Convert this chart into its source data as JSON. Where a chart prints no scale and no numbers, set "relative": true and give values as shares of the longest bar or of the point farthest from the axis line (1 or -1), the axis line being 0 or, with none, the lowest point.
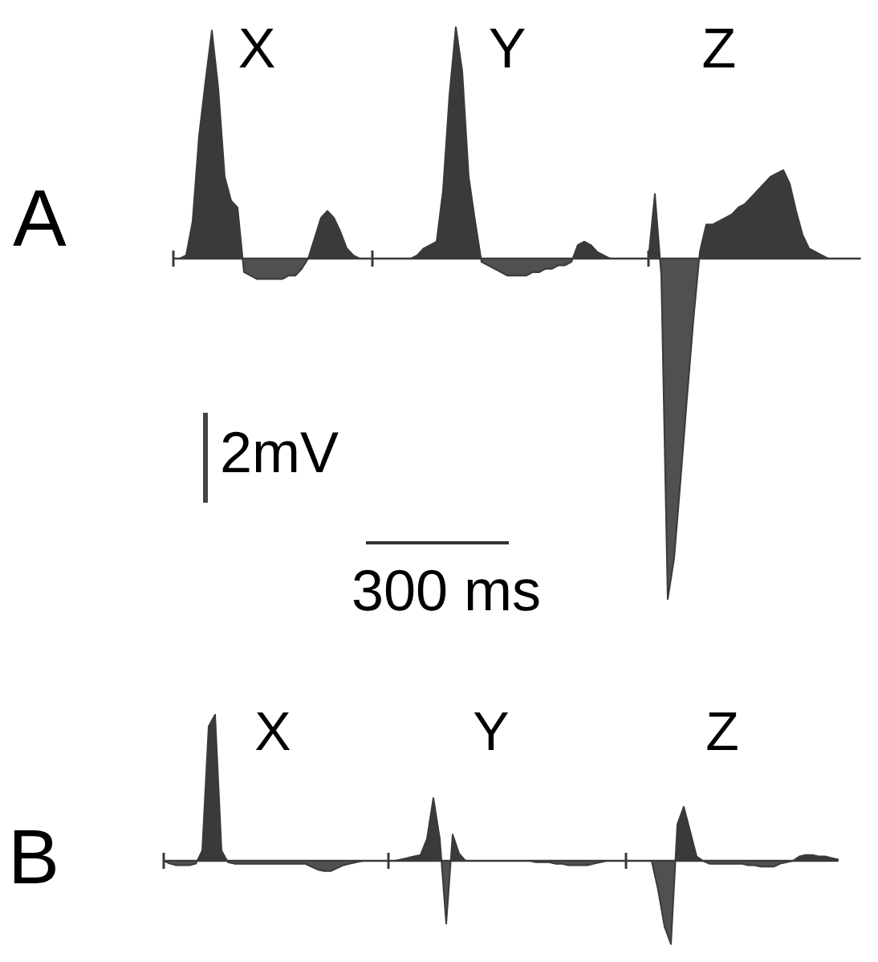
{
  "chart_data": [
    {
      "type": "area",
      "title": "A",
      "relative": true,
      "categories": [
        null,
        null,
        null,
        null,
        null,
        null,
        null,
        null,
        null,
        null,
        null,
        null,
        null,
        null,
        null,
        null,
        null,
        null,
        null,
        null,
        null,
        null,
        null,
        null,
        null,
        null,
        null,
        null,
        null,
        null,
        null,
        null,
        null,
        null,
        null,
        null,
        null,
        null,
        null,
        null,
        null,
        null,
        null,
        null,
        null,
        null,
        null,
        null,
        null,
        null,
        null,
        null,
        null,
        null,
        null,
        null,
        null,
        null,
        null,
        null,
        null,
        null,
        null,
        null,
        null,
        null,
        null,
        null,
        null,
        null,
        null,
        null,
        null,
        null,
        null,
        null,
        null,
        null,
        null,
        null,
        null,
        null,
        null,
        null,
        null,
        null,
        null,
        null,
        null,
        null,
        null,
        null,
        null,
        null,
        null,
        null,
        null,
        null,
        null,
        null,
        null,
        null,
        null,
        null,
        null,
        null,
        null,
        null
      ],
      "series": [
        {
          "name": "X",
          "color": "#3a3a3a",
          "values": [
            0,
            0,
            0.01,
            0.11,
            0.36,
            0.52,
            0.67,
            0.5,
            0.24,
            0.17,
            0.15,
            -0.04,
            -0.05,
            -0.06,
            -0.06,
            -0.06,
            -0.06,
            -0.06,
            -0.05,
            -0.05,
            -0.03,
            0,
            0.06,
            0.12,
            0.14,
            0.12,
            0.08,
            0.03,
            0.01,
            0,
            0,
            0,
            null,
            null,
            null,
            null,
            null,
            null,
            null,
            null,
            null,
            null,
            null,
            null,
            null,
            null,
            null,
            null,
            null,
            null,
            null,
            null,
            null,
            null,
            null,
            null,
            null,
            null,
            null,
            null,
            null,
            null,
            null,
            null,
            null,
            null,
            null,
            null,
            null,
            null,
            null,
            null,
            null,
            null,
            null,
            null,
            null,
            null,
            null,
            null,
            null,
            null,
            null,
            null,
            null,
            null,
            null,
            null,
            null,
            null,
            null,
            null,
            null,
            null,
            null,
            null,
            null,
            null,
            null,
            null,
            null,
            null,
            null,
            null,
            null,
            null,
            null,
            null
          ]
        },
        {
          "name": "Y",
          "color": "#3a3a3a",
          "values": [
            null,
            null,
            null,
            null,
            null,
            null,
            null,
            null,
            null,
            null,
            null,
            null,
            null,
            null,
            null,
            null,
            null,
            null,
            null,
            null,
            null,
            null,
            null,
            null,
            null,
            null,
            null,
            null,
            null,
            null,
            null,
            0,
            0,
            0,
            0,
            0,
            0,
            0,
            0.01,
            0.03,
            0.04,
            0.05,
            0.2,
            0.48,
            0.68,
            0.55,
            0.24,
            0.11,
            -0.01,
            -0.02,
            -0.03,
            -0.04,
            -0.05,
            -0.05,
            -0.05,
            -0.05,
            -0.04,
            -0.04,
            -0.03,
            -0.03,
            -0.02,
            -0.02,
            -0.01,
            0.04,
            0.05,
            0.04,
            0.02,
            0.01,
            0,
            0,
            0,
            0,
            0,
            0,
            0,
            null,
            null,
            null,
            null,
            null,
            null,
            null,
            null,
            null,
            null,
            null,
            null,
            null,
            null,
            null,
            null,
            null,
            null,
            null,
            null,
            null,
            null,
            null,
            null,
            null,
            null,
            null,
            null,
            null,
            null,
            null,
            null,
            null
          ]
        },
        {
          "name": "Z",
          "color": "#3a3a3a",
          "values": [
            null,
            null,
            null,
            null,
            null,
            null,
            null,
            null,
            null,
            null,
            null,
            null,
            null,
            null,
            null,
            null,
            null,
            null,
            null,
            null,
            null,
            null,
            null,
            null,
            null,
            null,
            null,
            null,
            null,
            null,
            null,
            null,
            null,
            null,
            null,
            null,
            null,
            null,
            null,
            null,
            null,
            null,
            null,
            null,
            null,
            null,
            null,
            null,
            null,
            null,
            null,
            null,
            null,
            null,
            null,
            null,
            null,
            null,
            null,
            null,
            null,
            null,
            null,
            null,
            null,
            null,
            null,
            null,
            null,
            null,
            null,
            null,
            null,
            null,
            0,
            0.19,
            -0.05,
            -1,
            -0.88,
            -0.65,
            -0.41,
            -0.18,
            0.02,
            0.1,
            0.1,
            0.11,
            0.12,
            0.13,
            0.15,
            0.16,
            0.18,
            0.2,
            0.22,
            0.24,
            0.25,
            0.26,
            0.22,
            0.14,
            0.07,
            0.03,
            0.02,
            0.01,
            0,
            0,
            0,
            0,
            0,
            0
          ]
        }
      ]
    },
    {
      "type": "other",
      "annotations": [
        "2mV",
        "300 ms"
      ]
    },
    {
      "type": "area",
      "title": "B",
      "relative": true,
      "categories": [
        null,
        null,
        null,
        null,
        null,
        null,
        null,
        null,
        null,
        null,
        null,
        null,
        null,
        null,
        null,
        null,
        null,
        null,
        null,
        null,
        null,
        null,
        null,
        null,
        null,
        null,
        null,
        null,
        null,
        null,
        null,
        null,
        null,
        null,
        null,
        null,
        null,
        null,
        null,
        null,
        null,
        null,
        null,
        null,
        null,
        null,
        null,
        null,
        null,
        null,
        null,
        null,
        null,
        null,
        null,
        null,
        null,
        null,
        null,
        null,
        null,
        null,
        null,
        null,
        null,
        null,
        null,
        null,
        null,
        null,
        null,
        null,
        null,
        null,
        null,
        null,
        null,
        null,
        null,
        null,
        null,
        null,
        null,
        null,
        null,
        null,
        null,
        null,
        null,
        null,
        null,
        null,
        null,
        null,
        null,
        null,
        null,
        null,
        null,
        null,
        null,
        null,
        null,
        null,
        null,
        null
      ],
      "series": [
        {
          "name": "X",
          "color": "#3a3a3a",
          "values": [
            0,
            -0.02,
            -0.03,
            -0.03,
            -0.03,
            -0.02,
            0.07,
            0.92,
            1,
            0.07,
            -0.01,
            -0.02,
            -0.02,
            -0.02,
            -0.02,
            -0.02,
            -0.02,
            -0.02,
            -0.02,
            -0.02,
            -0.02,
            -0.02,
            -0.02,
            -0.04,
            -0.06,
            -0.07,
            -0.07,
            -0.05,
            -0.03,
            -0.02,
            -0.01,
            0,
            0,
            0,
            null,
            null,
            null,
            null,
            null,
            null,
            null,
            null,
            null,
            null,
            null,
            null,
            null,
            null,
            null,
            null,
            null,
            null,
            null,
            null,
            null,
            null,
            null,
            null,
            null,
            null,
            null,
            null,
            null,
            null,
            null,
            null,
            null,
            null,
            null,
            null,
            null,
            null,
            null,
            null,
            null,
            null,
            null,
            null,
            null,
            null,
            null,
            null,
            null,
            null,
            null,
            null,
            null,
            null,
            null,
            null,
            null,
            null,
            null,
            null,
            null,
            null,
            null,
            null,
            null,
            null,
            null,
            null,
            null,
            null,
            null,
            null
          ]
        },
        {
          "name": "Y",
          "color": "#3a3a3a",
          "values": [
            null,
            null,
            null,
            null,
            null,
            null,
            null,
            null,
            null,
            null,
            null,
            null,
            null,
            null,
            null,
            null,
            null,
            null,
            null,
            null,
            null,
            null,
            null,
            null,
            null,
            null,
            null,
            null,
            null,
            null,
            null,
            null,
            null,
            null,
            null,
            0,
            0,
            0.01,
            0.02,
            0.03,
            0.04,
            0.15,
            0.43,
            0.15,
            -0.43,
            0.18,
            0.05,
            0,
            0,
            0,
            0,
            0,
            0,
            0,
            0,
            0,
            0,
            0,
            -0.01,
            -0.01,
            -0.01,
            -0.02,
            -0.02,
            -0.03,
            -0.03,
            -0.03,
            -0.03,
            -0.02,
            -0.01,
            0,
            null,
            null,
            null,
            null,
            null,
            null,
            null,
            null,
            null,
            null,
            null,
            null,
            null,
            null,
            null,
            null,
            null,
            null,
            null,
            null,
            null,
            null,
            null,
            null,
            null,
            null,
            null,
            null,
            null,
            null,
            null,
            null,
            null,
            null,
            null,
            null
          ]
        },
        {
          "name": "Z",
          "color": "#3a3a3a",
          "values": [
            null,
            null,
            null,
            null,
            null,
            null,
            null,
            null,
            null,
            null,
            null,
            null,
            null,
            null,
            null,
            null,
            null,
            null,
            null,
            null,
            null,
            null,
            null,
            null,
            null,
            null,
            null,
            null,
            null,
            null,
            null,
            null,
            null,
            null,
            null,
            null,
            null,
            null,
            null,
            null,
            null,
            null,
            null,
            null,
            null,
            null,
            null,
            null,
            null,
            null,
            null,
            null,
            null,
            null,
            null,
            null,
            null,
            null,
            null,
            null,
            null,
            null,
            null,
            null,
            null,
            null,
            null,
            null,
            null,
            null,
            null,
            null,
            0,
            0,
            0,
            0,
            0,
            -0.2,
            -0.45,
            -0.57,
            0.25,
            0.37,
            0.2,
            0.03,
            0,
            -0.02,
            -0.02,
            -0.02,
            -0.02,
            -0.02,
            -0.02,
            -0.03,
            -0.03,
            -0.04,
            -0.04,
            -0.04,
            -0.02,
            -0.01,
            0,
            0.03,
            0.04,
            0.04,
            0.03,
            0.03,
            0.02,
            0.01
          ]
        }
      ]
    }
  ]
}
